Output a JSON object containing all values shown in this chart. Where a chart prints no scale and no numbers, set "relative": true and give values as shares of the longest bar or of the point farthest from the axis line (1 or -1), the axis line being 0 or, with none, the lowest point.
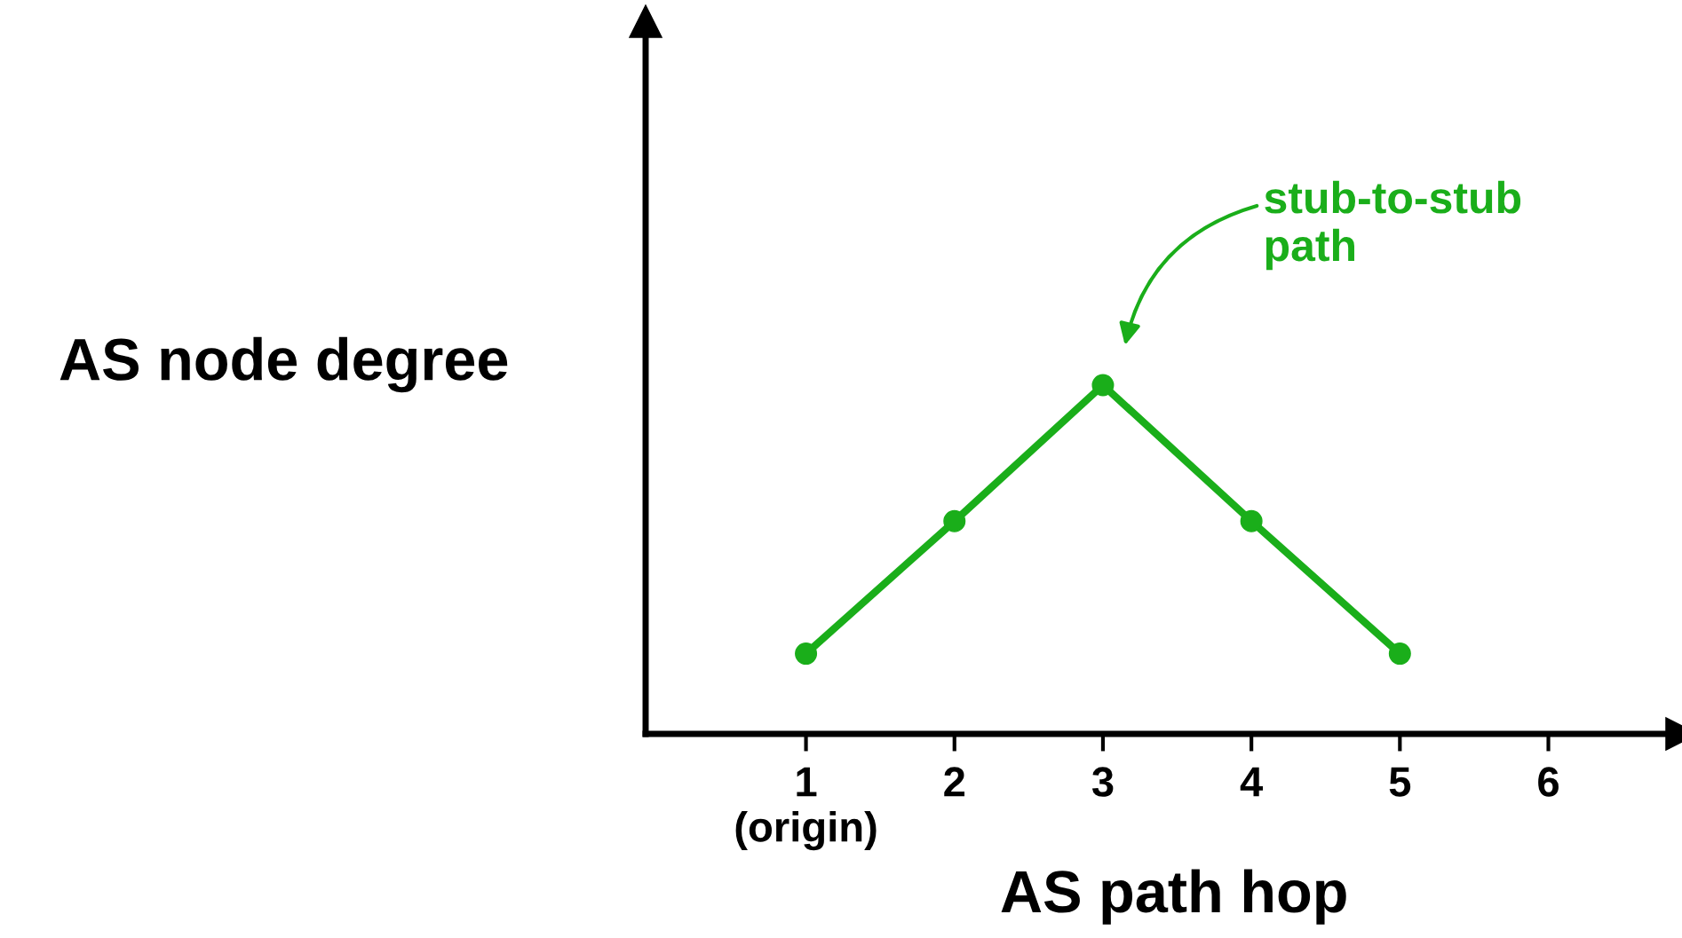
{
  "chart_data": {
    "type": "line",
    "relative": true,
    "x": [
      1,
      2,
      3,
      4,
      5
    ],
    "series": [
      {
        "color": "#1aae1a",
        "values": [
          0.23,
          0.61,
          1,
          0.61,
          0.23
        ]
      }
    ],
    "xlim": [
      -0.08,
      6.9
    ],
    "xticks": [
      {
        "value": 1,
        "label": "1\n(origin)"
      },
      2,
      3,
      4,
      5,
      6
    ],
    "xlabel": "AS path hop",
    "ylabel": "AS node degree",
    "annotations": [
      "stub-to-stub\npath"
    ],
    "marker": "circle",
    "line_style": "solid",
    "grid": false,
    "legend": false
  }
}
